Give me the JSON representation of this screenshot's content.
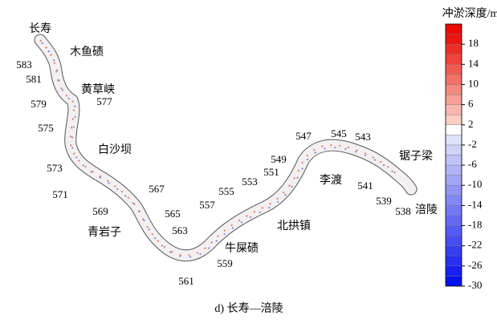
{
  "caption": "d) 长寿—涪陵",
  "colorbar": {
    "title": "冲淤深度/m",
    "lim": [
      -30,
      22
    ],
    "ticks": [
      18,
      14,
      10,
      6,
      2,
      -2,
      -6,
      -10,
      -14,
      -18,
      -22,
      -26,
      -30
    ]
  },
  "place_labels": [
    "长寿",
    "木鱼碛",
    "黄草峡",
    "白沙坝",
    "青岩子",
    "牛屎碛",
    "北拱镇",
    "李渡",
    "锯子梁",
    "涪陵"
  ],
  "section_labels": [
    583,
    581,
    579,
    577,
    575,
    573,
    571,
    569,
    567,
    565,
    563,
    561,
    559,
    557,
    555,
    553,
    551,
    549,
    547,
    545,
    543,
    541,
    539,
    538
  ]
}
